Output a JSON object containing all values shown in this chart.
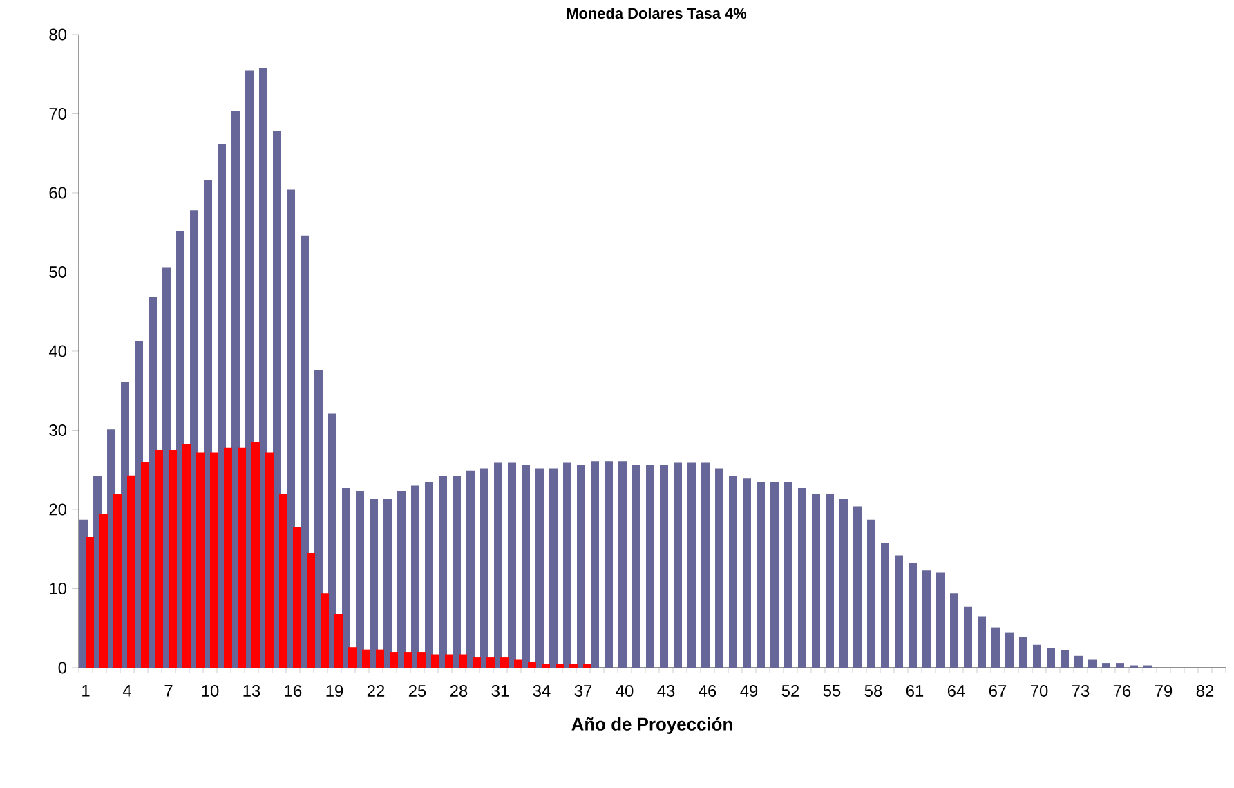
{
  "chart_data": {
    "type": "bar",
    "title": "Moneda Dolares Tasa 4%",
    "xlabel": "Año de Proyección",
    "categories": [
      "1",
      null,
      null,
      "4",
      null,
      null,
      "7",
      null,
      null,
      "10",
      null,
      null,
      "13",
      null,
      null,
      "16",
      null,
      null,
      "19",
      null,
      null,
      "22",
      null,
      null,
      "25",
      null,
      null,
      "28",
      null,
      null,
      "31",
      null,
      null,
      "34",
      null,
      null,
      "37",
      null,
      null,
      "40",
      null,
      null,
      "43",
      null,
      null,
      "46",
      null,
      null,
      "49",
      null,
      null,
      "52",
      null,
      null,
      "55",
      null,
      null,
      "58",
      null,
      null,
      "61",
      null,
      null,
      "64",
      null,
      null,
      "67",
      null,
      null,
      "70",
      null,
      null,
      "73",
      null,
      null,
      "76",
      null,
      null,
      "79",
      null,
      null,
      "82",
      null
    ],
    "series": [
      {
        "color": "#666699",
        "values": [
          18.7,
          24.2,
          30.1,
          36.1,
          41.3,
          46.8,
          50.6,
          55.2,
          57.8,
          61.6,
          66.2,
          70.4,
          75.5,
          75.8,
          67.8,
          60.4,
          54.6,
          37.6,
          32.1,
          22.7,
          22.3,
          21.3,
          21.3,
          22.3,
          23.0,
          23.4,
          24.2,
          24.2,
          24.9,
          25.2,
          25.9,
          25.9,
          25.6,
          25.2,
          25.2,
          25.9,
          25.6,
          26.1,
          26.1,
          26.1,
          25.6,
          25.6,
          25.6,
          25.9,
          25.9,
          25.9,
          25.2,
          24.2,
          23.9,
          23.4,
          23.4,
          23.4,
          22.7,
          22.0,
          22.0,
          21.3,
          20.4,
          18.7,
          15.8,
          14.2,
          13.2,
          12.3,
          12.0,
          9.4,
          7.7,
          6.5,
          5.1,
          4.4,
          3.9,
          2.9,
          2.5,
          2.2,
          1.5,
          1.0,
          0.6,
          0.6,
          0.3,
          0.3,
          0,
          0,
          0,
          0,
          0
        ]
      },
      {
        "color": "#ff0000",
        "values": [
          16.5,
          19.4,
          22.0,
          24.3,
          26.0,
          27.5,
          27.5,
          28.2,
          27.2,
          27.2,
          27.8,
          27.8,
          28.5,
          27.2,
          22.0,
          17.8,
          14.5,
          9.4,
          6.8,
          2.6,
          2.3,
          2.3,
          2.0,
          2.0,
          2.0,
          1.7,
          1.7,
          1.7,
          1.3,
          1.3,
          1.3,
          1.0,
          0.7,
          0.5,
          0.5,
          0.5,
          0.5,
          null,
          null,
          null,
          null,
          null,
          null,
          null,
          null,
          null,
          null,
          null,
          null,
          null,
          null,
          null,
          null,
          null,
          null,
          null,
          null,
          null,
          null,
          null,
          null,
          null,
          null,
          null,
          null,
          null,
          null,
          null,
          null,
          null,
          null,
          null,
          null,
          null,
          null,
          null,
          null,
          null,
          null,
          null,
          null,
          null,
          null
        ]
      }
    ],
    "ylim": [
      0,
      80
    ],
    "yticks": [
      0,
      10,
      20,
      30,
      40,
      50,
      60,
      70,
      80
    ]
  }
}
